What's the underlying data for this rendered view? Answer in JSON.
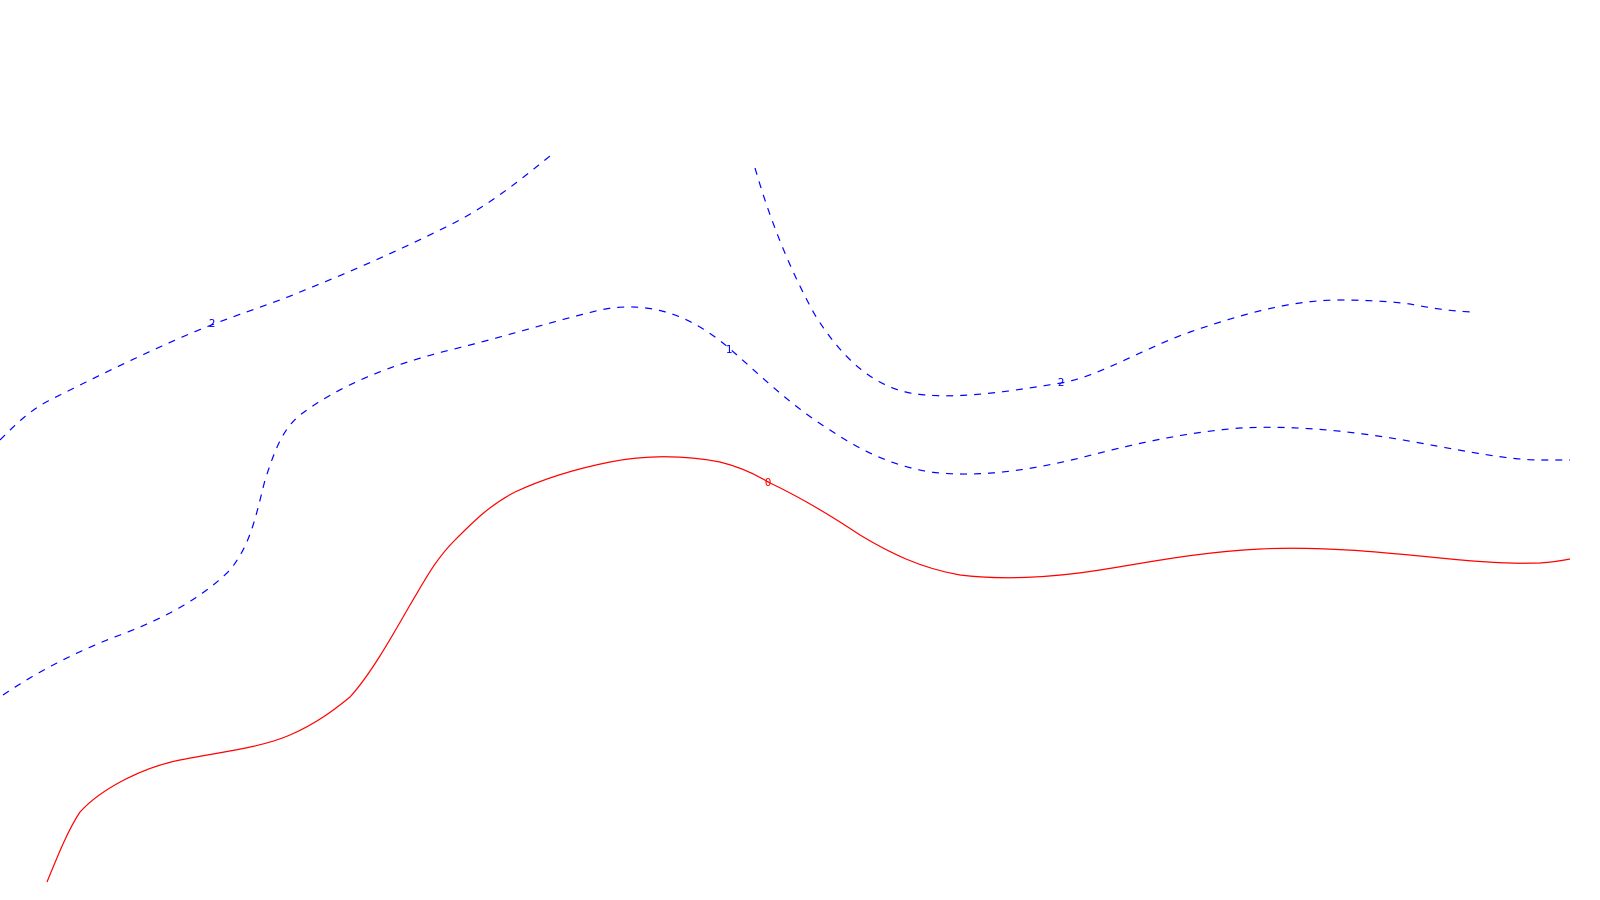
{
  "contours": [
    {
      "level_label": "0",
      "color": "#ff0000",
      "style": "solid"
    },
    {
      "level_label": "1",
      "color": "#0000ff",
      "style": "dashed"
    },
    {
      "level_label": "2",
      "color": "#0000ff",
      "style": "dashed"
    },
    {
      "level_label": "2",
      "color": "#0000ff",
      "style": "dashed"
    }
  ]
}
